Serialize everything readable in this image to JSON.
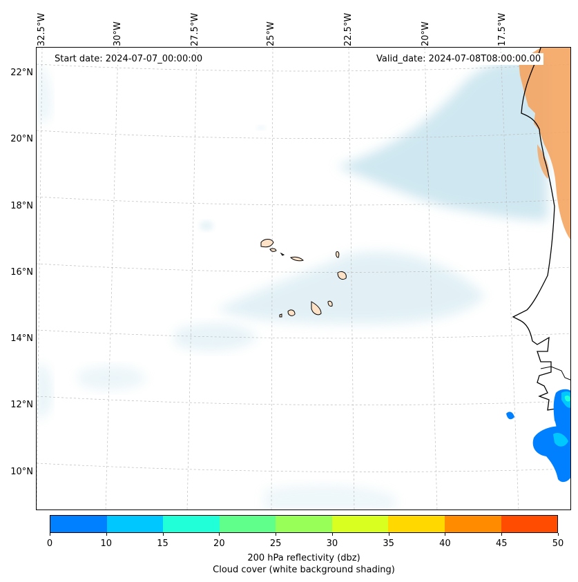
{
  "map": {
    "longitude_labels": [
      "32.5°W",
      "30°W",
      "27.5°W",
      "25°W",
      "22.5°W",
      "20°W",
      "17.5°W"
    ],
    "latitude_labels": [
      "22°N",
      "20°N",
      "18°N",
      "16°N",
      "14°N",
      "12°N",
      "10°N"
    ],
    "start_date": "Start date: 2024-07-07_00:00:00",
    "valid_date": "Valid_date: 2024-07-08T08:00:00.00",
    "colors": {
      "land_dust": "#f4a460",
      "island_fill": "#fde2c8",
      "cloud_shading": "#a8d4e4",
      "coastline": "#000000",
      "gridline": "#bbbbbb"
    }
  },
  "colorbar": {
    "tick_labels": [
      "0",
      "10",
      "15",
      "20",
      "25",
      "30",
      "35",
      "40",
      "45",
      "50"
    ],
    "colors": [
      "#0080ff",
      "#00c8ff",
      "#20ffd8",
      "#60ff8c",
      "#98ff58",
      "#d8ff20",
      "#ffd800",
      "#ff8c00",
      "#ff4c00"
    ],
    "label": "200 hPa reflectivity (dbz)",
    "sublabel": "Cloud cover (white background shading)"
  }
}
